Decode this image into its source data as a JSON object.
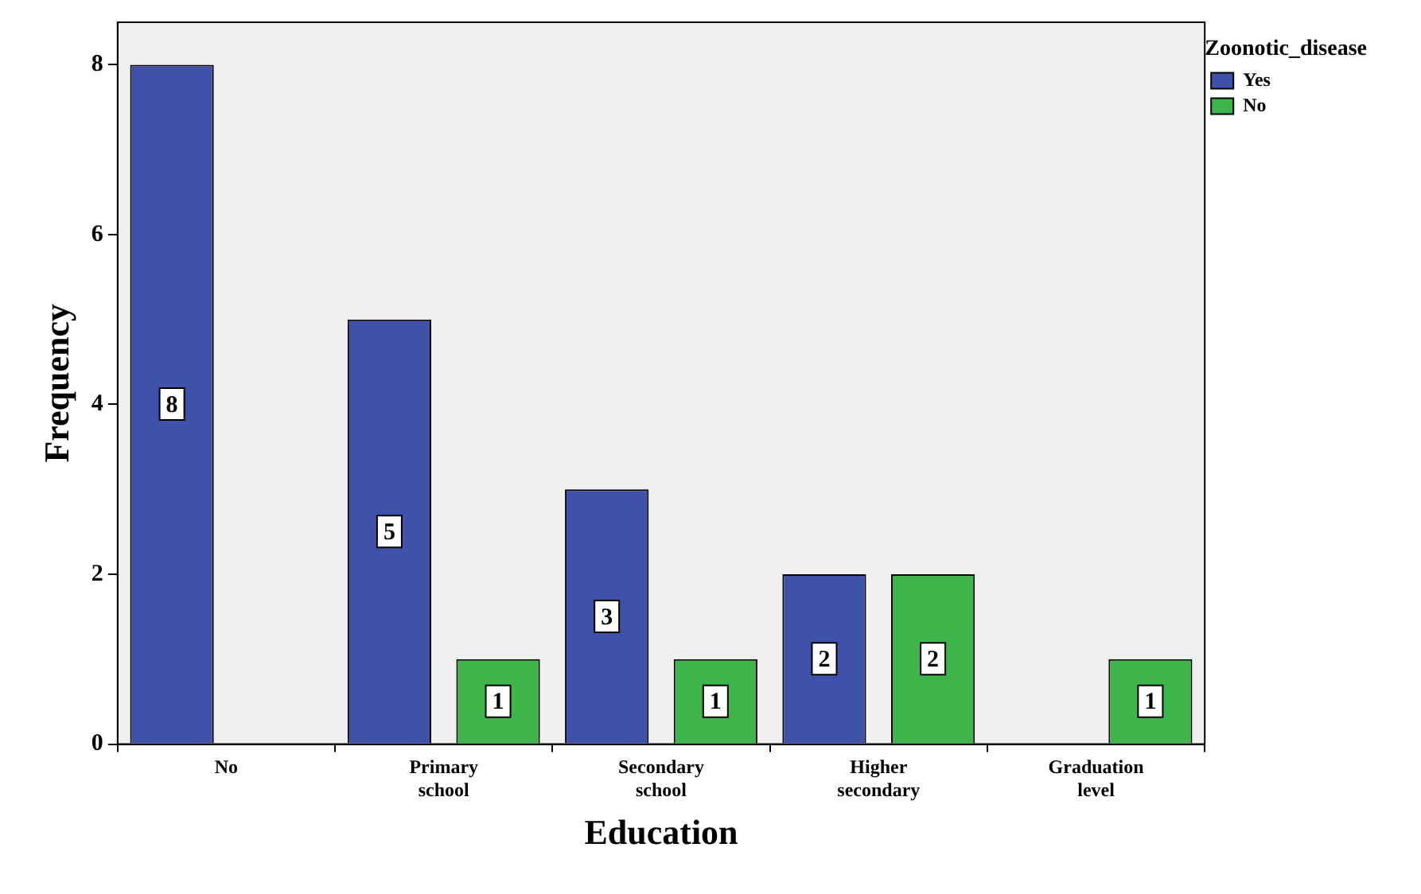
{
  "chart_data": {
    "type": "bar",
    "xlabel": "Education",
    "ylabel": "Frequency",
    "legend_title": "Zoonotic_disease",
    "categories": [
      "No",
      "Primary school",
      "Secondary school",
      "Higher secondary",
      "Graduation level"
    ],
    "series": [
      {
        "name": "Yes",
        "color": "#3f51a8",
        "values": [
          8,
          5,
          3,
          2,
          null
        ]
      },
      {
        "name": "No",
        "color": "#3db54a",
        "values": [
          null,
          1,
          1,
          2,
          1
        ]
      }
    ],
    "ylim": [
      0,
      8.5
    ],
    "yticks": [
      0,
      2,
      4,
      6,
      8
    ],
    "grid": false,
    "legend": "top right",
    "data_labels": true
  }
}
